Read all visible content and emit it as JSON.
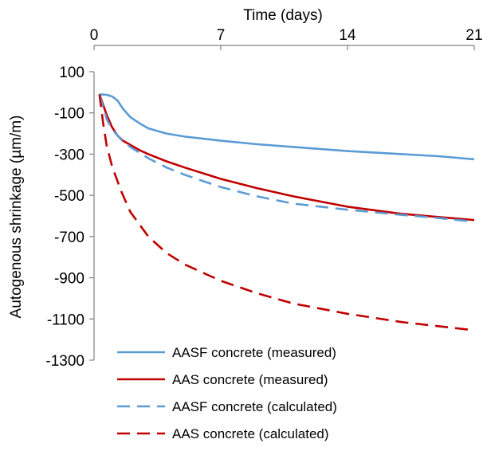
{
  "chart_data": {
    "type": "line",
    "title": "",
    "xlabel": "Time (days)",
    "ylabel": "Autogenous shrinkage (µm/m)",
    "xlim": [
      0,
      21
    ],
    "ylim": [
      -1300,
      100
    ],
    "x_ticks": [
      0,
      7,
      14,
      21
    ],
    "y_ticks": [
      100,
      -100,
      -300,
      -500,
      -700,
      -900,
      -1100,
      -1300
    ],
    "x_axis_position": "top",
    "grid": false,
    "legend_position": "bottom-left",
    "series": [
      {
        "name": "AASF concrete (measured)",
        "color": "#5b9bd5",
        "style": "solid",
        "x": [
          0.3,
          0.7,
          1.0,
          1.3,
          1.6,
          2.0,
          2.5,
          3.0,
          4.0,
          5.0,
          7.0,
          9.0,
          11.0,
          14.0,
          17.0,
          19.0,
          21.0
        ],
        "y": [
          -10,
          -12,
          -20,
          -40,
          -80,
          -120,
          -150,
          -175,
          -200,
          -215,
          -235,
          -252,
          -265,
          -285,
          -300,
          -310,
          -325
        ]
      },
      {
        "name": "AAS concrete (measured)",
        "color": "#c00000",
        "style": "solid",
        "x": [
          0.3,
          0.5,
          0.7,
          1.0,
          1.3,
          1.6,
          2.0,
          2.5,
          3.0,
          4.0,
          5.0,
          7.0,
          9.0,
          11.0,
          14.0,
          17.0,
          19.0,
          21.0
        ],
        "y": [
          -10,
          -60,
          -110,
          -170,
          -210,
          -235,
          -255,
          -280,
          -300,
          -335,
          -365,
          -420,
          -465,
          -505,
          -555,
          -590,
          -605,
          -620
        ]
      },
      {
        "name": "AASF concrete (calculated)",
        "color": "#5b9bd5",
        "style": "dashed",
        "x": [
          0.3,
          0.5,
          0.7,
          1.0,
          1.5,
          2.0,
          3.0,
          4.0,
          5.0,
          7.0,
          9.0,
          11.0,
          14.0,
          17.0,
          19.0,
          21.0
        ],
        "y": [
          -10,
          -70,
          -130,
          -180,
          -230,
          -265,
          -320,
          -365,
          -400,
          -460,
          -505,
          -540,
          -570,
          -595,
          -610,
          -628
        ]
      },
      {
        "name": "AAS concrete (calculated)",
        "color": "#c00000",
        "style": "dashed",
        "x": [
          0.3,
          0.5,
          0.7,
          1.0,
          1.5,
          2.0,
          3.0,
          4.0,
          5.0,
          7.0,
          9.0,
          11.0,
          14.0,
          17.0,
          19.0,
          21.0
        ],
        "y": [
          -10,
          -150,
          -260,
          -360,
          -480,
          -580,
          -700,
          -780,
          -835,
          -915,
          -975,
          -1025,
          -1075,
          -1115,
          -1135,
          -1155
        ]
      }
    ]
  }
}
